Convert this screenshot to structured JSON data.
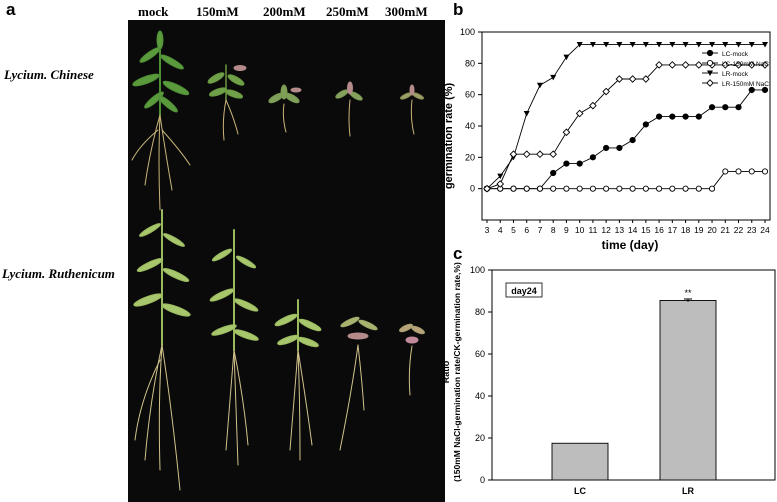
{
  "panel_labels": {
    "a": "a",
    "b": "b",
    "c": "c"
  },
  "photo": {
    "column_headers": [
      "mock",
      "150mM",
      "200mM",
      "250mM",
      "300mM"
    ],
    "row_labels": [
      "Lycium. Chinese",
      "Lycium. Ruthenicum"
    ],
    "background_color": "#0a0a0a"
  },
  "chart_data": [
    {
      "type": "line",
      "ylabel": "germination rate (%)",
      "xlabel": "time (day)",
      "x": [
        3,
        4,
        5,
        6,
        7,
        8,
        9,
        10,
        11,
        12,
        13,
        14,
        15,
        16,
        17,
        18,
        19,
        20,
        21,
        22,
        23,
        24
      ],
      "xlim": [
        3,
        24
      ],
      "ylim": [
        -20,
        100
      ],
      "yticks": [
        0,
        20,
        40,
        60,
        80,
        100
      ],
      "legend_position": "top-right",
      "series": [
        {
          "name": "LC-mock",
          "marker": "filled-circle",
          "values": [
            0,
            0,
            0,
            0,
            0,
            10,
            16,
            16,
            20,
            26,
            26,
            31,
            41,
            46,
            46,
            46,
            46,
            52,
            52,
            52,
            63,
            63
          ]
        },
        {
          "name": "LC-150mM NaCl",
          "marker": "open-circle",
          "values": [
            0,
            0,
            0,
            0,
            0,
            0,
            0,
            0,
            0,
            0,
            0,
            0,
            0,
            0,
            0,
            0,
            0,
            0,
            11,
            11,
            11,
            11
          ]
        },
        {
          "name": "LR-mock",
          "marker": "filled-triangle-down",
          "values": [
            0,
            8,
            20,
            48,
            66,
            71,
            84,
            92,
            92,
            92,
            92,
            92,
            92,
            92,
            92,
            92,
            92,
            92,
            92,
            92,
            92,
            92
          ]
        },
        {
          "name": "LR-150mM NaCl",
          "marker": "open-diamond",
          "values": [
            0,
            3,
            22,
            22,
            22,
            22,
            36,
            48,
            53,
            62,
            70,
            70,
            70,
            79,
            79,
            79,
            79,
            79,
            79,
            79,
            79,
            79
          ]
        }
      ]
    },
    {
      "type": "bar",
      "ylabel_line1": "Ratio",
      "ylabel_line2": "(150mM NaCl-germination rate/CK-germination rate,%)",
      "annotation": "day24",
      "categories": [
        "LC",
        "LR"
      ],
      "values": [
        17.5,
        85.5
      ],
      "error": [
        0,
        0.7
      ],
      "significance": [
        "",
        "**"
      ],
      "ylim": [
        0,
        100
      ],
      "yticks": [
        0,
        20,
        40,
        60,
        80,
        100
      ],
      "bar_color": "#bdbdbd"
    }
  ]
}
